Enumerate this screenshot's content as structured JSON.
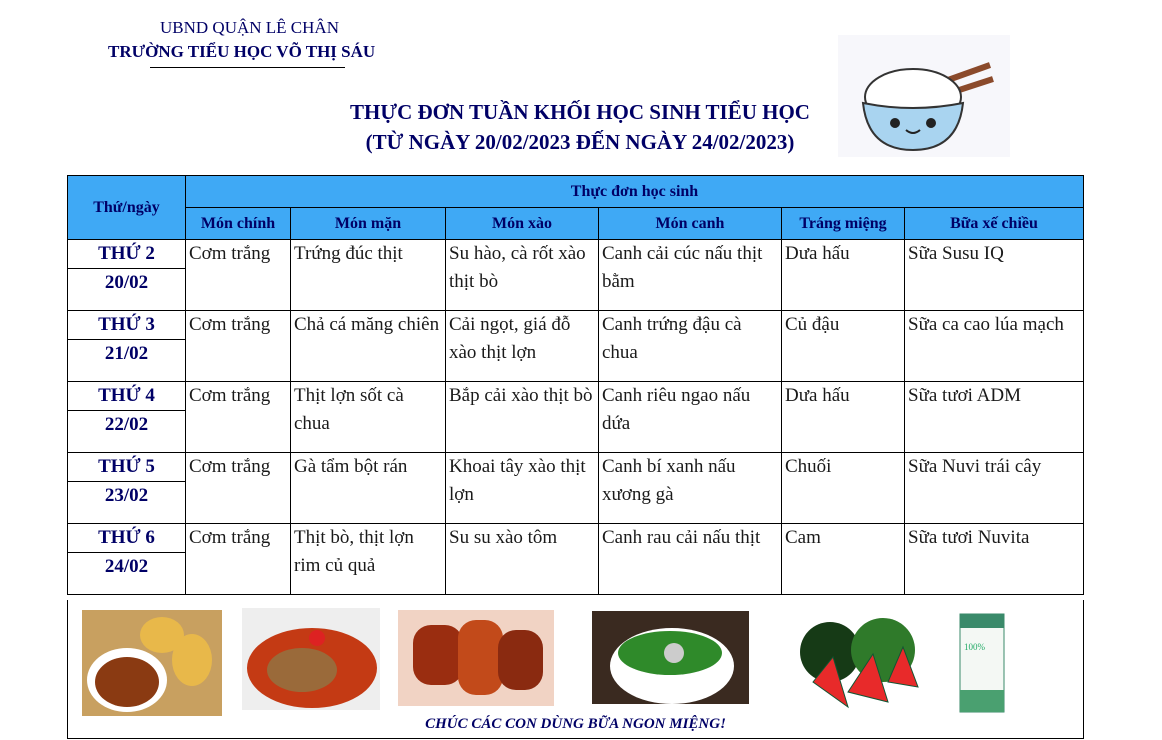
{
  "header": {
    "org": "UBND QUẬN LÊ CHÂN",
    "school": "TRƯỜNG TIỂU HỌC VÕ THỊ SÁU",
    "title": "THỰC ĐƠN TUẦN KHỐI HỌC SINH TIỂU HỌC",
    "subtitle": "(TỪ NGÀY 20/02/2023 ĐẾN NGÀY 24/02/2023)"
  },
  "colors": {
    "header_bg": "#3fa9f5",
    "heading_text": "#000066"
  },
  "table": {
    "day_header": "Thứ/ngày",
    "group_header": "Thực đơn học sinh",
    "columns": [
      "Món chính",
      "Món mặn",
      "Món xào",
      "Món canh",
      "Tráng miệng",
      "Bữa xế chiều"
    ],
    "rows": [
      {
        "day": "THỨ 2",
        "date": "20/02",
        "cells": [
          "Cơm trắng",
          "Trứng đúc thịt",
          "Su hào, cà rốt xào thịt bò",
          "Canh cải cúc nấu thịt bằm",
          "Dưa hấu",
          "Sữa Susu IQ"
        ]
      },
      {
        "day": "THỨ 3",
        "date": "21/02",
        "cells": [
          "Cơm trắng",
          "Chả cá măng chiên",
          "Cải ngọt, giá đỗ xào thịt lợn",
          "Canh trứng đậu cà chua",
          "Củ đậu",
          "Sữa ca cao lúa mạch"
        ]
      },
      {
        "day": "THỨ 4",
        "date": "22/02",
        "cells": [
          "Cơm trắng",
          "Thịt lợn sốt cà chua",
          "Bắp cải xào thịt bò",
          "Canh riêu ngao nấu dứa",
          "Dưa hấu",
          "Sữa tươi ADM"
        ]
      },
      {
        "day": "THỨ 5",
        "date": "23/02",
        "cells": [
          "Cơm trắng",
          "Gà tẩm bột rán",
          "Khoai tây xào thịt lợn",
          "Canh bí xanh nấu xương gà",
          "Chuối",
          "Sữa Nuvi trái cây"
        ]
      },
      {
        "day": "THỨ 6",
        "date": "24/02",
        "cells": [
          "Cơm trắng",
          "Thịt bò, thịt lợn rim củ quả",
          "Su su xào tôm",
          "Canh rau cải nấu thịt",
          "Cam",
          "Sữa tươi Nuvita"
        ]
      }
    ]
  },
  "footer": {
    "wish": "CHÚC CÁC CON DÙNG BỮA NGON MIỆNG!",
    "images": [
      "beef-stew-bread",
      "fish-tomato-sauce",
      "glazed-ribs",
      "vegetable-soup",
      "watermelon",
      "milk-carton"
    ]
  }
}
